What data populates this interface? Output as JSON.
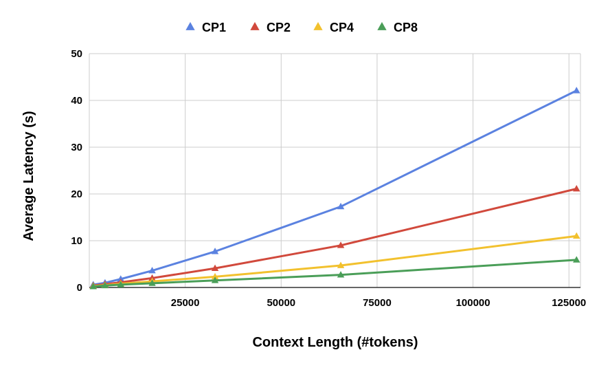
{
  "chart_data": {
    "type": "line",
    "xlabel": "Context Length (#tokens)",
    "ylabel": "Average Latency (s)",
    "xlim": [
      0,
      128000
    ],
    "ylim": [
      0,
      50
    ],
    "xticks": [
      25000,
      50000,
      75000,
      100000,
      125000
    ],
    "yticks": [
      0,
      10,
      20,
      30,
      40,
      50
    ],
    "grid": true,
    "legend": "top-center",
    "x": [
      1024,
      4096,
      8192,
      16384,
      32768,
      65536,
      126976
    ],
    "series": [
      {
        "name": "CP1",
        "color": "#5b82e0",
        "values": [
          0.6,
          1.0,
          1.8,
          3.6,
          7.7,
          17.3,
          42.1
        ]
      },
      {
        "name": "CP2",
        "color": "#d1493c",
        "values": [
          0.4,
          0.7,
          1.1,
          2.0,
          4.1,
          9.0,
          21.1
        ]
      },
      {
        "name": "CP4",
        "color": "#f2c12e",
        "values": [
          0.3,
          0.5,
          0.8,
          1.3,
          2.3,
          4.7,
          11.0
        ]
      },
      {
        "name": "CP8",
        "color": "#4a9e58",
        "values": [
          0.2,
          0.4,
          0.6,
          0.9,
          1.5,
          2.7,
          5.9
        ]
      }
    ]
  }
}
